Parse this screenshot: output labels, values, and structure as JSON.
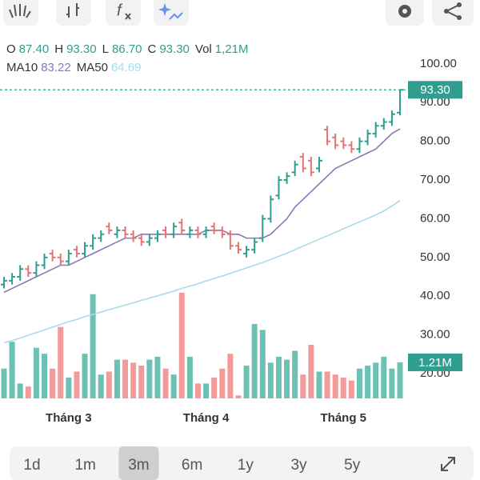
{
  "chart_data": {
    "type": "ohlc",
    "legend": [
      {
        "key": "O",
        "value": "87.40"
      },
      {
        "key": "H",
        "value": "93.30"
      },
      {
        "key": "L",
        "value": "86.70"
      },
      {
        "key": "C",
        "value": "93.30"
      },
      {
        "key": "Vol",
        "value": "1,21M"
      }
    ],
    "categories": [
      null,
      null,
      null,
      null,
      null,
      null,
      null,
      null,
      "Tháng 3",
      null,
      null,
      null,
      null,
      null,
      null,
      null,
      null,
      null,
      null,
      null,
      null,
      null,
      null,
      null,
      null,
      "Tháng 4",
      null,
      null,
      null,
      null,
      null,
      null,
      null,
      null,
      null,
      null,
      null,
      null,
      null,
      null,
      null,
      null,
      "Tháng 5",
      null,
      null,
      null,
      null,
      null,
      null,
      null
    ],
    "open": [
      43,
      44,
      45,
      47,
      46,
      48,
      51,
      50,
      49,
      52,
      51,
      53,
      55,
      58,
      56,
      57,
      56,
      55,
      54,
      55,
      57,
      56,
      59,
      56,
      57,
      56,
      58,
      57,
      56,
      53,
      51,
      52,
      55,
      60,
      66,
      70,
      72,
      76,
      75,
      73,
      83,
      81,
      80,
      79,
      78,
      80,
      82,
      84,
      85,
      87.4
    ],
    "high": [
      45,
      46,
      48,
      48,
      49,
      51,
      52,
      51,
      52,
      53,
      54,
      56,
      57,
      59,
      58,
      58,
      57,
      56,
      56,
      57,
      58,
      59,
      60,
      58,
      58,
      58,
      59,
      58,
      57,
      54,
      53,
      55,
      61,
      66,
      71,
      72,
      75,
      77,
      76,
      76,
      84,
      82,
      81,
      80,
      81,
      83,
      85,
      86,
      88,
      93.3
    ],
    "low": [
      42,
      43,
      44,
      45,
      45,
      47,
      49,
      48,
      48,
      50,
      50,
      52,
      54,
      56,
      55,
      55,
      54,
      53,
      53,
      54,
      55,
      55,
      56,
      55,
      55,
      55,
      56,
      55,
      52,
      51,
      50,
      51,
      54,
      59,
      65,
      69,
      71,
      72,
      71,
      72,
      79,
      78,
      78,
      77,
      77,
      79,
      81,
      83,
      84,
      86.7
    ],
    "close": [
      44,
      45,
      47,
      46,
      48,
      50,
      50,
      49,
      51,
      51,
      53,
      55,
      56,
      57,
      57,
      56,
      55,
      54,
      55,
      56,
      56,
      58,
      57,
      57,
      56,
      57,
      57,
      56,
      53,
      52,
      52,
      54,
      60,
      65,
      70,
      71,
      74,
      73,
      72,
      75,
      80,
      79,
      79,
      78,
      80,
      82,
      84,
      85,
      87,
      93.3
    ],
    "up_color": "#2f9e8f",
    "down_color": "#e57373",
    "close_label": "93.30",
    "volume": {
      "values": [
        1.0,
        1.9,
        0.5,
        0.4,
        1.7,
        1.5,
        1.0,
        2.4,
        0.7,
        0.9,
        1.5,
        3.5,
        0.8,
        0.9,
        1.3,
        1.3,
        1.2,
        1.1,
        1.3,
        1.4,
        1.0,
        0.8,
        3.55,
        1.4,
        0.5,
        0.5,
        0.7,
        1.0,
        1.5,
        0.1,
        1.1,
        2.5,
        2.3,
        1.2,
        1.4,
        1.3,
        1.6,
        0.8,
        1.8,
        0.9,
        0.9,
        0.8,
        0.7,
        0.6,
        1.0,
        1.1,
        1.2,
        1.4,
        1.0,
        1.21
      ],
      "ylim": [
        0,
        3.6
      ],
      "up_color": "#6cc1b4",
      "down_color": "#f39a9a",
      "label": "1.21M"
    },
    "ma": [
      {
        "name": "MA10",
        "color": "#8a78b5",
        "last_label": "83.22",
        "values": [
          41,
          42,
          43,
          44,
          45,
          46,
          47,
          48,
          48,
          49,
          50,
          51,
          52,
          53,
          54,
          55,
          55,
          56,
          56,
          56,
          56,
          56,
          56,
          56,
          56,
          57,
          57,
          57,
          56,
          56,
          55,
          55,
          55,
          56,
          58,
          60,
          63,
          65,
          67,
          69,
          71,
          73,
          74,
          75,
          76,
          77,
          78,
          80,
          82,
          83.22
        ]
      },
      {
        "name": "MA50",
        "color": "#a8dcea",
        "last_label": "64.69",
        "values": [
          28,
          28.5,
          29.2,
          29.9,
          30.6,
          31.3,
          32,
          32.7,
          33.4,
          34,
          34.7,
          35.3,
          35.9,
          36.5,
          37.1,
          37.7,
          38.3,
          38.9,
          39.5,
          40.1,
          40.7,
          41.3,
          42,
          42.6,
          43.2,
          43.9,
          44.6,
          45.2,
          45.9,
          46.6,
          47.3,
          48,
          48.7,
          49.5,
          50.3,
          51.1,
          52,
          52.9,
          53.8,
          54.7,
          55.6,
          56.5,
          57.4,
          58.3,
          59.2,
          60.1,
          61,
          62,
          63.3,
          64.69
        ]
      }
    ],
    "ylim": [
      12.15,
      104.1
    ],
    "yticks": [
      {
        "value": 20,
        "label": "20.00"
      },
      {
        "value": 30,
        "label": "30.00"
      },
      {
        "value": 40,
        "label": "40.00"
      },
      {
        "value": 50,
        "label": "50.00"
      },
      {
        "value": 60,
        "label": "60.00"
      },
      {
        "value": 70,
        "label": "70.00"
      },
      {
        "value": 80,
        "label": "80.00"
      },
      {
        "value": 90,
        "label": "90.00"
      },
      {
        "value": 100,
        "label": "100.00"
      }
    ],
    "ranges": [
      "1d",
      "1m",
      "3m",
      "6m",
      "1y",
      "3y",
      "5y"
    ],
    "selected_range": 2
  }
}
